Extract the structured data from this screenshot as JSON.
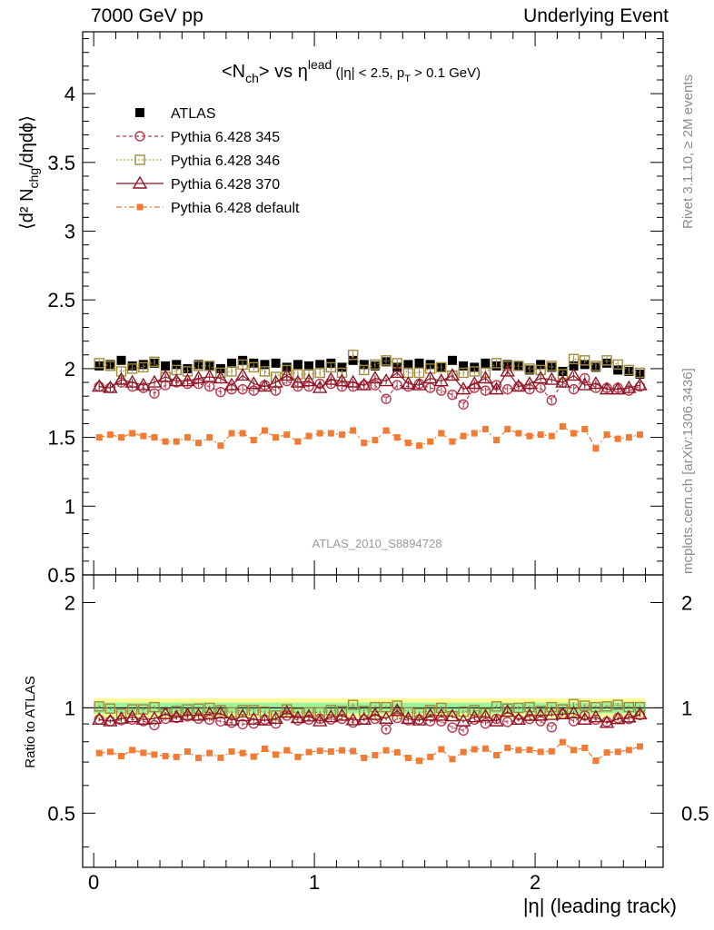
{
  "header": {
    "left": "7000 GeV pp",
    "right": "Underlying Event"
  },
  "side": {
    "rivet": "Rivet 3.1.10, ≥ 2M events",
    "mcplots": "mcplots.cern.ch [arXiv:1306.3436]"
  },
  "title": {
    "main": "<N",
    "sub": "ch",
    "after": "> vs η",
    "sup": "lead",
    "cut": "(|η| < 2.5, p",
    "cutsub": "T",
    "cutend": " > 0.1 GeV)"
  },
  "watermark": "ATLAS_2010_S8894728",
  "ylabel_top": "⟨d² N_chg/dηdϕ⟩",
  "ylabel_bottom": "Ratio to ATLAS",
  "xlabel": "|η| (leading track)",
  "colors": {
    "atlas": "#000000",
    "p345": "#b53a4f",
    "p346": "#a08a3c",
    "p370": "#8e1424",
    "pdef": "#f07b35",
    "band_inner": "#9cf59c",
    "band_outer": "#fafa96"
  },
  "chart_data": [
    {
      "type": "scatter",
      "title": "<Nch> vs ηlead (|η| < 2.5, pT > 0.1 GeV)",
      "xlabel": "|η| (leading track)",
      "ylabel": "⟨d² Nchg/dηdϕ⟩",
      "xlim": [
        -0.05,
        2.58
      ],
      "ylim": [
        0.5,
        4.45
      ],
      "yticks": [
        0.5,
        1,
        1.5,
        2,
        2.5,
        3,
        3.5,
        4
      ],
      "xticks": [
        0,
        1,
        2
      ],
      "legend_position": "top-left",
      "x": [
        0.025,
        0.075,
        0.125,
        0.175,
        0.225,
        0.275,
        0.325,
        0.375,
        0.425,
        0.475,
        0.525,
        0.575,
        0.625,
        0.675,
        0.725,
        0.775,
        0.825,
        0.875,
        0.925,
        0.975,
        1.025,
        1.075,
        1.125,
        1.175,
        1.225,
        1.275,
        1.325,
        1.375,
        1.425,
        1.475,
        1.525,
        1.575,
        1.625,
        1.675,
        1.725,
        1.775,
        1.825,
        1.875,
        1.925,
        1.975,
        2.025,
        2.075,
        2.125,
        2.175,
        2.225,
        2.275,
        2.325,
        2.375,
        2.425,
        2.475
      ],
      "series": [
        {
          "name": "ATLAS",
          "marker": "filled-square",
          "values": [
            2.02,
            2.03,
            2.06,
            2.02,
            2.03,
            2.04,
            2.02,
            2.03,
            2.0,
            2.03,
            2.02,
            2.0,
            2.04,
            2.06,
            2.04,
            2.03,
            2.04,
            2.01,
            2.03,
            2.02,
            2.03,
            2.04,
            2.01,
            2.06,
            2.03,
            2.02,
            2.05,
            2.01,
            2.03,
            2.04,
            2.03,
            2.01,
            2.06,
            2.02,
            2.01,
            2.04,
            2.02,
            2.03,
            2.02,
            1.99,
            2.03,
            2.01,
            1.98,
            2.02,
            2.03,
            2.01,
            2.04,
            1.99,
            1.98,
            1.96
          ]
        },
        {
          "name": "Pythia 6.428 345",
          "marker": "open-circle",
          "values": [
            1.87,
            1.86,
            1.9,
            1.87,
            1.86,
            1.82,
            1.88,
            1.9,
            1.89,
            1.89,
            1.87,
            1.83,
            1.85,
            1.85,
            1.84,
            1.88,
            1.84,
            1.91,
            1.87,
            1.87,
            1.89,
            1.89,
            1.87,
            1.87,
            1.88,
            1.88,
            1.78,
            1.88,
            1.87,
            1.89,
            1.86,
            1.84,
            1.81,
            1.74,
            1.86,
            1.84,
            1.88,
            1.85,
            1.87,
            1.85,
            1.86,
            1.77,
            1.9,
            1.85,
            1.93,
            1.86,
            1.86,
            1.86,
            1.84,
            1.87
          ]
        },
        {
          "name": "Pythia 6.428 346",
          "marker": "open-square",
          "values": [
            2.04,
            2.02,
            1.98,
            2.0,
            2.01,
            2.05,
            1.94,
            1.99,
            1.98,
            2.02,
            2.02,
            1.97,
            1.98,
            2.03,
            2.01,
            1.98,
            1.94,
            1.99,
            1.96,
            1.96,
            1.97,
            2.01,
            1.97,
            2.1,
            1.99,
            2.03,
            2.06,
            2.04,
            1.97,
            1.97,
            2.0,
            2.01,
            1.95,
            1.97,
            1.98,
            1.97,
            2.04,
            2.02,
            2.02,
            2.0,
            1.99,
            2.02,
            1.96,
            2.07,
            2.06,
            2.02,
            2.06,
            2.03,
            1.99,
            1.97
          ]
        },
        {
          "name": "Pythia 6.428 370",
          "marker": "open-triangle",
          "values": [
            1.87,
            1.86,
            1.92,
            1.9,
            1.88,
            1.9,
            1.94,
            1.91,
            1.91,
            1.93,
            1.94,
            1.93,
            1.88,
            1.95,
            1.89,
            1.87,
            1.9,
            1.95,
            1.9,
            1.91,
            1.86,
            1.92,
            1.91,
            1.9,
            1.88,
            1.93,
            1.91,
            1.97,
            1.89,
            1.88,
            1.93,
            1.91,
            1.95,
            1.85,
            1.89,
            1.93,
            1.85,
            1.98,
            1.87,
            1.89,
            1.93,
            1.92,
            1.9,
            1.95,
            1.88,
            1.89,
            1.85,
            1.85,
            1.86,
            1.88
          ]
        },
        {
          "name": "Pythia 6.428 default",
          "marker": "filled-small-square",
          "values": [
            1.5,
            1.52,
            1.5,
            1.53,
            1.51,
            1.5,
            1.47,
            1.47,
            1.5,
            1.46,
            1.5,
            1.44,
            1.53,
            1.53,
            1.48,
            1.55,
            1.5,
            1.52,
            1.47,
            1.51,
            1.53,
            1.53,
            1.52,
            1.55,
            1.46,
            1.48,
            1.55,
            1.5,
            1.46,
            1.44,
            1.47,
            1.53,
            1.47,
            1.51,
            1.53,
            1.56,
            1.48,
            1.56,
            1.53,
            1.51,
            1.52,
            1.51,
            1.58,
            1.53,
            1.56,
            1.42,
            1.52,
            1.49,
            1.5,
            1.52
          ]
        }
      ]
    },
    {
      "type": "scatter",
      "ylabel": "Ratio to ATLAS",
      "xlabel": "|η| (leading track)",
      "ylim": [
        0.35,
        2.4
      ],
      "yscale": "log",
      "yticks": [
        0.5,
        1,
        2
      ],
      "xticks": [
        0,
        1,
        2
      ],
      "band_inner_halfwidth": 0.035,
      "band_outer_halfwidth": 0.065,
      "reference_line": 1
    }
  ]
}
